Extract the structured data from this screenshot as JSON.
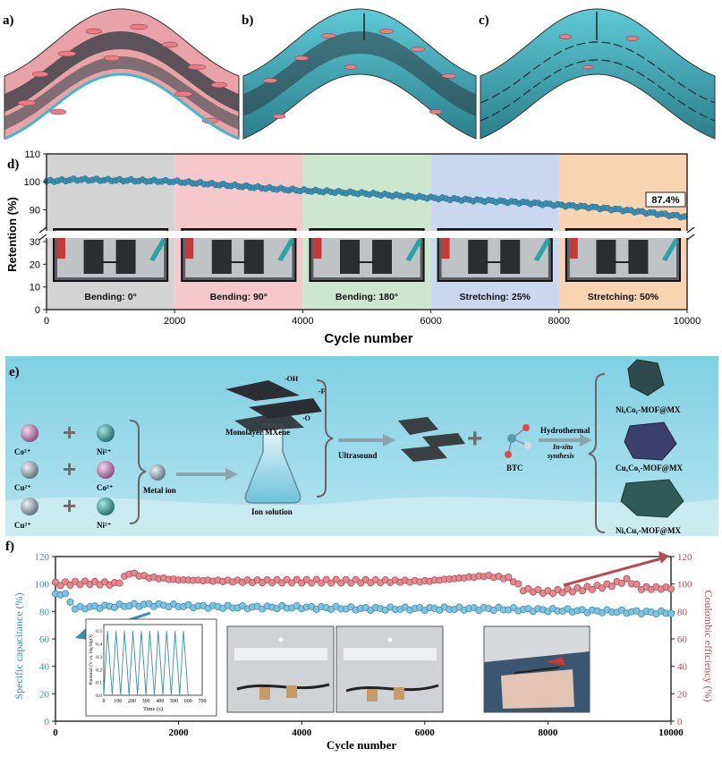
{
  "panels": {
    "a": "a)",
    "b": "b)",
    "c": "c)",
    "d": "d)",
    "e": "e)",
    "f": "f)"
  },
  "colors": {
    "teal": "#41b8c9",
    "pink": "#e48f96",
    "dark": "#1f2a33",
    "blue_series": "#3a8db0",
    "red_series": "#b84a50",
    "zone_gray": "#d3d3d3",
    "zone_pink": "#f6c8cc",
    "zone_green": "#cde7cf",
    "zone_blue": "#c9d7ef",
    "zone_orange": "#fad3b1"
  },
  "panel_e": {
    "ions_left": [
      "Co²⁺",
      "Cu²⁺",
      "Cu²⁺"
    ],
    "ions_right": [
      "Ni²⁺",
      "Co²⁺",
      "Ni²⁺"
    ],
    "metal_ion": "Metal ion",
    "ion_solution": "Ion solution",
    "monolayer": "Monolayer MXene",
    "oh": "-OH",
    "f": "-F",
    "o": "-O",
    "ultrasound": "Ultrasound",
    "btc": "BTC",
    "hydrothermal": "Hydrothermal",
    "insitu": "In-situ",
    "synthesis": "synthesis",
    "products": [
      "NiₓCoᵧ-MOF@MX",
      "CuₓCoᵧ-MOF@MX",
      "NiₓCuᵧ-MOF@MX"
    ]
  },
  "chart_data": [
    {
      "id": "d",
      "type": "scatter",
      "xlabel": "Cycle number",
      "ylabel": "Retention (%)",
      "xlim": [
        0,
        10000
      ],
      "x_ticks": [
        0,
        2000,
        4000,
        6000,
        8000,
        10000
      ],
      "y_ticks_upper": [
        90,
        100,
        110
      ],
      "y_ticks_lower": [
        0,
        10,
        20,
        30
      ],
      "axis_break": true,
      "series_points": [
        [
          0,
          100.2
        ],
        [
          500,
          100.8
        ],
        [
          1000,
          100.6
        ],
        [
          1500,
          100.4
        ],
        [
          2000,
          100.1
        ],
        [
          2500,
          99.3
        ],
        [
          3000,
          98.5
        ],
        [
          3500,
          97.6
        ],
        [
          4000,
          96.9
        ],
        [
          4500,
          96.4
        ],
        [
          5000,
          95.8
        ],
        [
          5500,
          95.0
        ],
        [
          6000,
          94.3
        ],
        [
          6500,
          93.6
        ],
        [
          7000,
          93.1
        ],
        [
          7500,
          92.5
        ],
        [
          8000,
          91.7
        ],
        [
          8500,
          90.9
        ],
        [
          9000,
          89.9
        ],
        [
          9500,
          88.7
        ],
        [
          10000,
          87.4
        ]
      ],
      "annotation": "87.4%",
      "zones": [
        {
          "label": "Bending: 0°",
          "x0": 0,
          "x1": 2000
        },
        {
          "label": "Bending: 90°",
          "x0": 2000,
          "x1": 4000
        },
        {
          "label": "Bending: 180°",
          "x0": 4000,
          "x1": 6000
        },
        {
          "label": "Stretching: 25%",
          "x0": 6000,
          "x1": 8000
        },
        {
          "label": "Stretching: 50%",
          "x0": 8000,
          "x1": 10000
        }
      ]
    },
    {
      "id": "f",
      "type": "scatter",
      "xlabel": "Cycle number",
      "ylabel_left": "Specific capacitance (%)",
      "ylabel_right": "Coulombic efficiency (%)",
      "xlim": [
        0,
        10000
      ],
      "ylim": [
        0,
        120
      ],
      "x_ticks": [
        0,
        2000,
        4000,
        6000,
        8000,
        10000
      ],
      "y_ticks": [
        0,
        20,
        40,
        60,
        80,
        100,
        120
      ],
      "series": [
        {
          "color": "blue",
          "points": [
            [
              0,
              93
            ],
            [
              100,
              93
            ],
            [
              200,
              91
            ],
            [
              300,
              82
            ],
            [
              500,
              83
            ],
            [
              1000,
              84
            ],
            [
              1500,
              85
            ],
            [
              2000,
              84
            ],
            [
              3000,
              83
            ],
            [
              4000,
              83
            ],
            [
              5000,
              82
            ],
            [
              6000,
              82
            ],
            [
              7000,
              82
            ],
            [
              8000,
              81
            ],
            [
              9000,
              80
            ],
            [
              10000,
              79
            ]
          ]
        },
        {
          "color": "red",
          "points": [
            [
              0,
              100
            ],
            [
              500,
              101
            ],
            [
              1000,
              100
            ],
            [
              1200,
              108
            ],
            [
              1500,
              105
            ],
            [
              2000,
              103
            ],
            [
              3000,
              102
            ],
            [
              4000,
              102
            ],
            [
              5000,
              102
            ],
            [
              6000,
              102
            ],
            [
              7000,
              106
            ],
            [
              7400,
              104
            ],
            [
              7600,
              96
            ],
            [
              8000,
              94
            ],
            [
              8500,
              96
            ],
            [
              9000,
              99
            ],
            [
              9300,
              103
            ],
            [
              9500,
              97
            ],
            [
              10000,
              97
            ]
          ]
        }
      ],
      "inset": {
        "xlabel": "Time (s)",
        "ylabel": "Potential (V vs. Hg/HgO)",
        "x_ticks": [
          0,
          100,
          200,
          300,
          400,
          500,
          600,
          700
        ],
        "y_ticks": [
          0.0,
          0.1,
          0.2,
          0.3,
          0.4,
          0.5
        ],
        "cycles": 10,
        "period": 60,
        "vmax": 0.5,
        "xmax": 700
      }
    }
  ]
}
